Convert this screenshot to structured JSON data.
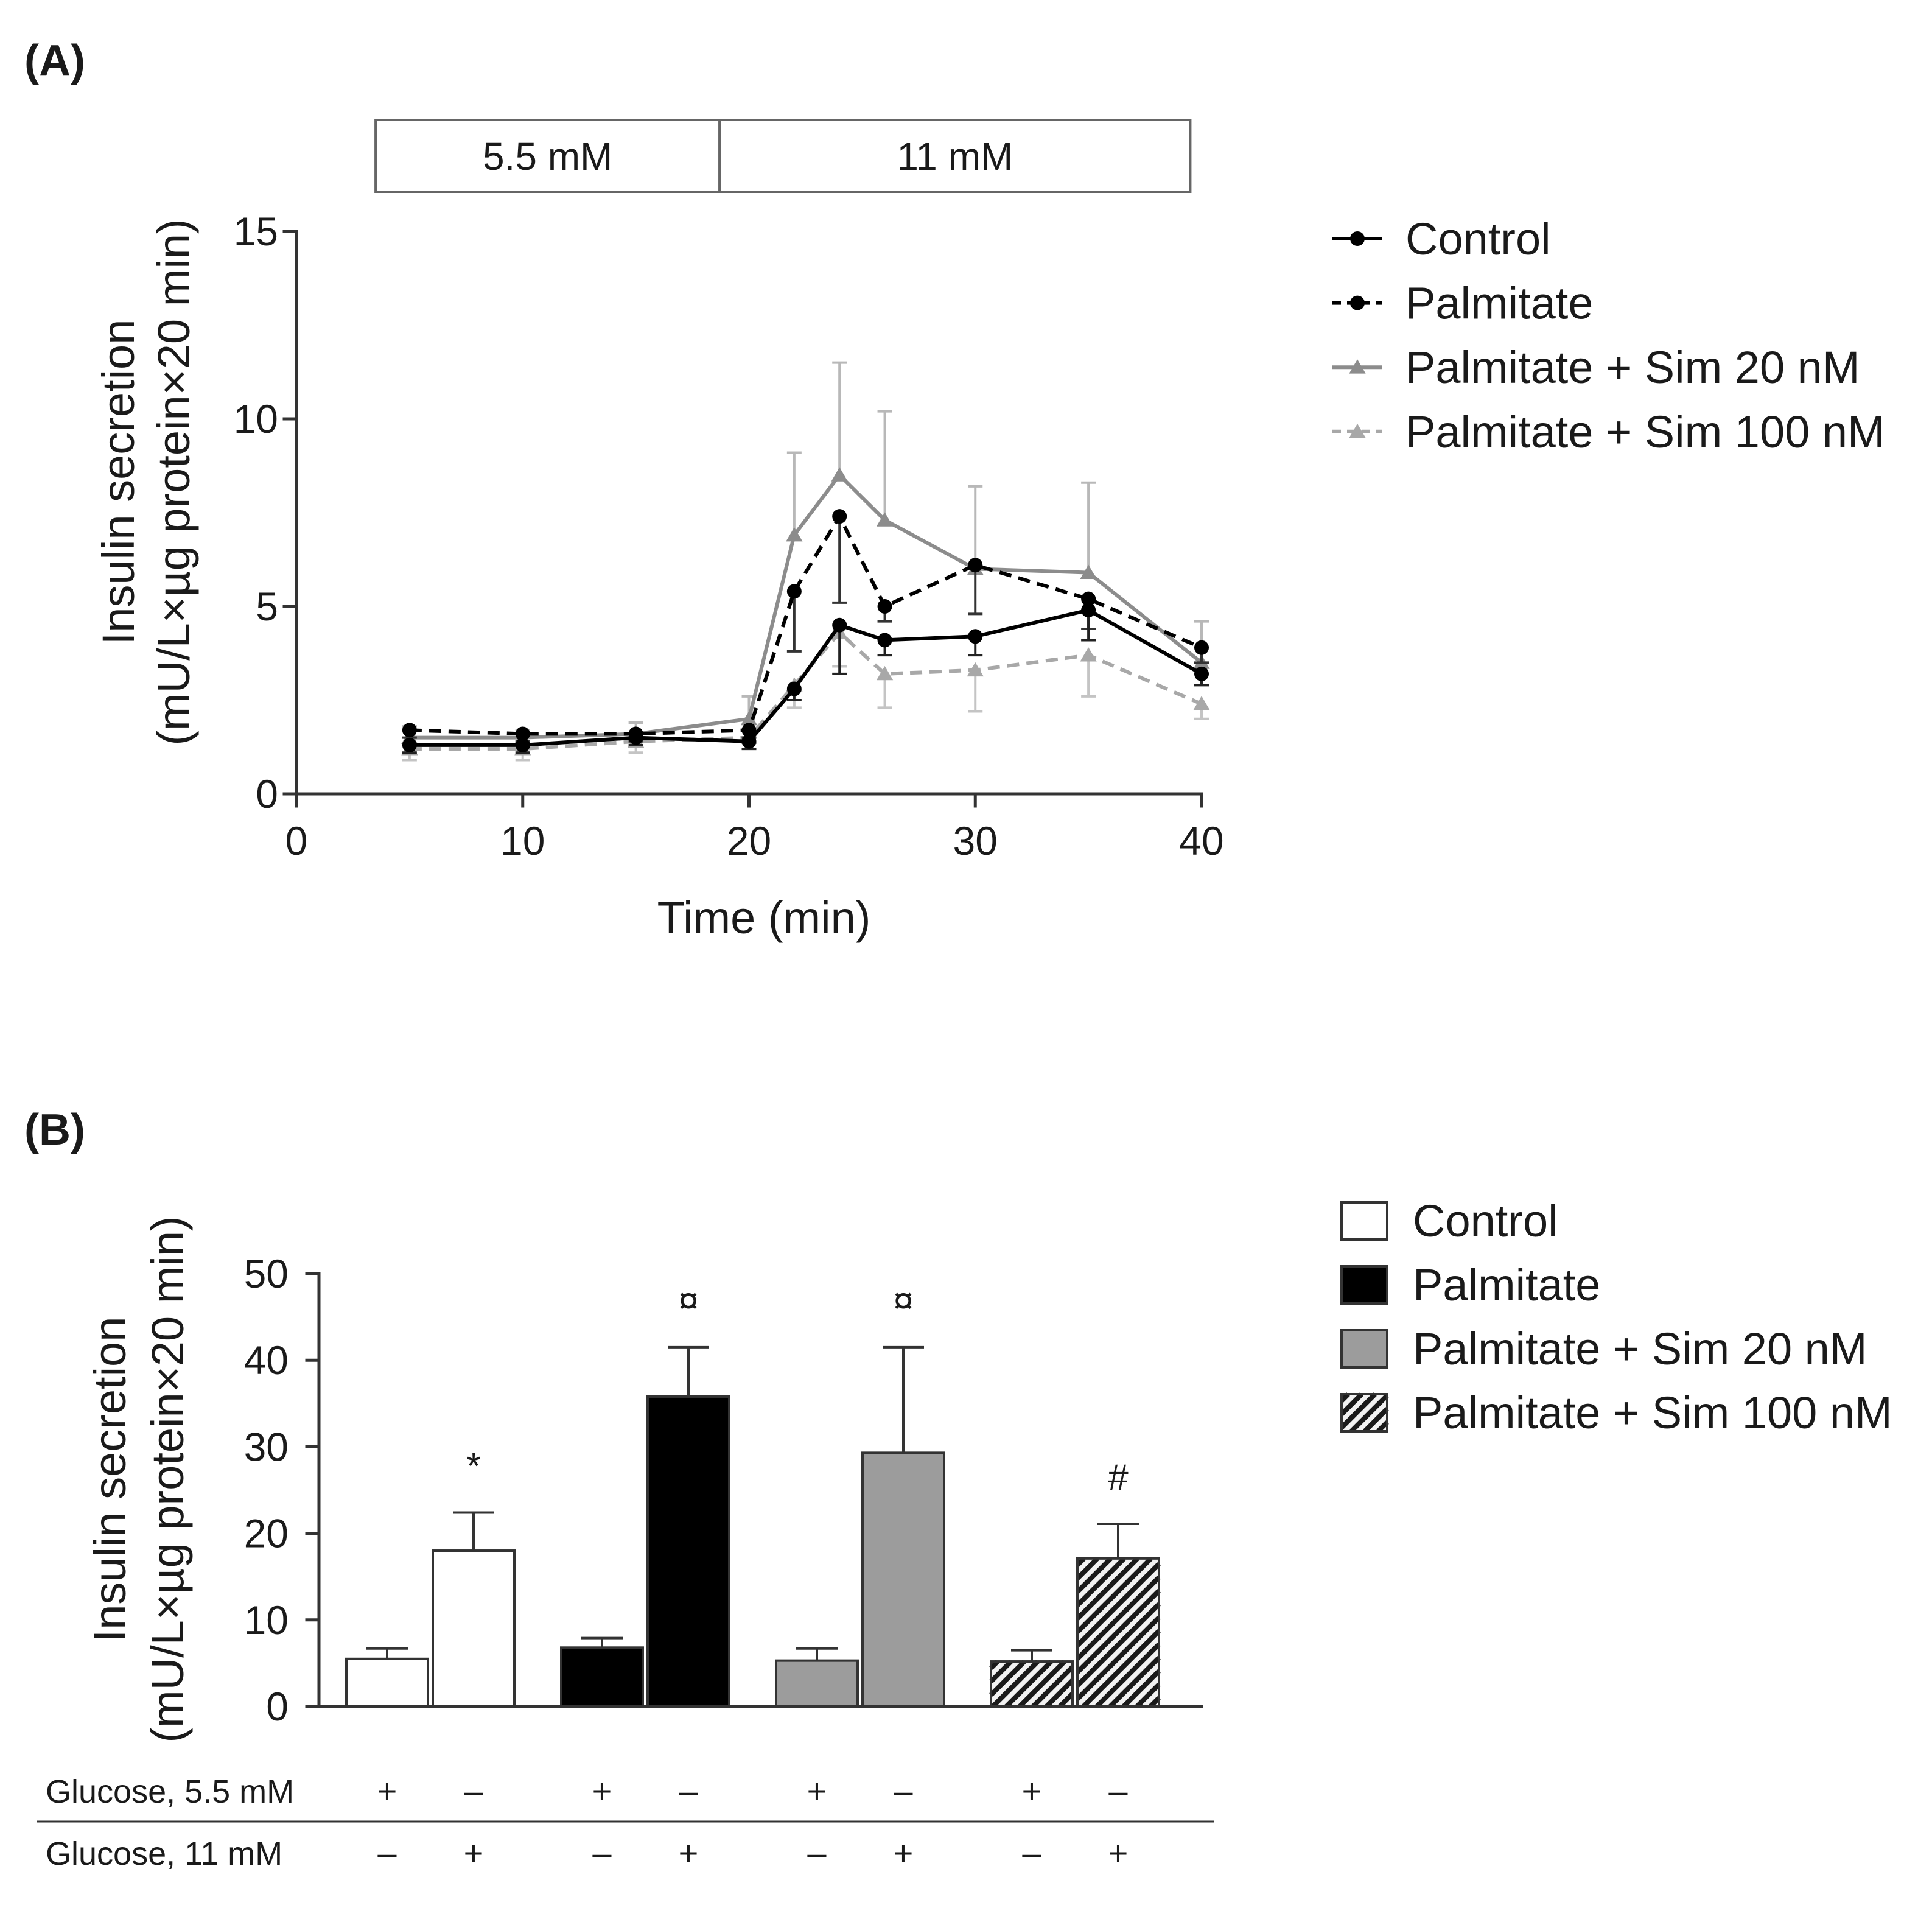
{
  "chart_data": [
    {
      "panel_label": "(A)",
      "type": "line",
      "xlabel": "Time (min)",
      "ylabel": [
        "Insulin secretion",
        "(mU/L×µg protein×20 min)"
      ],
      "xlim": [
        0,
        40
      ],
      "ylim": [
        0,
        15
      ],
      "xticks": [
        0,
        10,
        20,
        30,
        40
      ],
      "yticks": [
        0,
        5,
        10,
        15
      ],
      "glucose_periods": [
        {
          "label": "5.5 mM",
          "time_range_min": [
            3.5,
            18.7
          ]
        },
        {
          "label": "11 mM",
          "time_range_min": [
            18.7,
            39.5
          ]
        }
      ],
      "x": [
        5,
        10,
        15,
        20,
        22,
        24,
        26,
        30,
        35,
        40
      ],
      "series": [
        {
          "name": "Control",
          "values": [
            1.3,
            1.3,
            1.5,
            1.4,
            2.8,
            4.5,
            4.1,
            4.2,
            4.9,
            3.2
          ],
          "err": [
            0.2,
            0.2,
            0.2,
            0.2,
            0.3,
            1.3,
            0.4,
            0.5,
            0.8,
            0.3
          ],
          "error_bars_upward": false,
          "color": "#000000",
          "err_color": "#222222",
          "dashed": false,
          "marker": "circle"
        },
        {
          "name": "Palmitate",
          "values": [
            1.7,
            1.6,
            1.6,
            1.7,
            5.4,
            7.4,
            5.0,
            6.1,
            5.2,
            3.9
          ],
          "err": [
            0.2,
            0.2,
            0.2,
            0.2,
            1.6,
            2.3,
            0.4,
            1.3,
            0.8,
            0.4
          ],
          "error_bars_upward": false,
          "color": "#000000",
          "err_color": "#333333",
          "dashed": true,
          "marker": "circle"
        },
        {
          "name": "Palmitate + Sim 20 nM",
          "values": [
            1.5,
            1.5,
            1.6,
            2.0,
            6.9,
            8.5,
            7.3,
            6.0,
            5.9,
            3.5
          ],
          "err": [
            0.3,
            0.2,
            0.3,
            0.6,
            2.2,
            3.0,
            2.9,
            2.2,
            2.4,
            1.1
          ],
          "error_bars_upward": true,
          "color": "#8c8c8c",
          "err_color": "#b8b8b8",
          "dashed": false,
          "marker": "triangle"
        },
        {
          "name": "Palmitate + Sim 100 nM",
          "values": [
            1.2,
            1.2,
            1.4,
            1.5,
            2.9,
            4.3,
            3.2,
            3.3,
            3.7,
            2.4
          ],
          "err": [
            0.3,
            0.3,
            0.3,
            0.3,
            0.6,
            0.9,
            0.9,
            1.1,
            1.1,
            0.4
          ],
          "error_bars_upward": false,
          "color": "#a8a8a8",
          "err_color": "#c4c4c4",
          "dashed": true,
          "marker": "triangle"
        }
      ]
    },
    {
      "panel_label": "(B)",
      "type": "bar",
      "ylabel": [
        "Insulin secretion",
        "(mU/L×µg protein×20 min)"
      ],
      "ylim": [
        0,
        50
      ],
      "yticks": [
        0,
        10,
        20,
        30,
        40,
        50
      ],
      "series": [
        {
          "name": "Control",
          "values": [
            5.5,
            18.0
          ],
          "err": [
            1.2,
            4.4
          ],
          "fill": "#ffffff",
          "hatched": false,
          "annotation": "*"
        },
        {
          "name": "Palmitate",
          "values": [
            6.8,
            35.8
          ],
          "err": [
            1.1,
            5.7
          ],
          "fill": "#000000",
          "hatched": false,
          "annotation": "¤"
        },
        {
          "name": "Palmitate + Sim 20 nM",
          "values": [
            5.3,
            29.3
          ],
          "err": [
            1.4,
            12.2
          ],
          "fill": "#9c9c9c",
          "hatched": false,
          "annotation": "¤"
        },
        {
          "name": "Palmitate + Sim 100 nM",
          "values": [
            5.2,
            17.1
          ],
          "err": [
            1.3,
            4.0
          ],
          "fill": "#f2f2f2",
          "hatched": true,
          "hatch_color": "#1a1a1a",
          "annotation": "#"
        }
      ],
      "table": [
        {
          "label": "Glucose, 5.5 mM",
          "marks": [
            "+",
            "–",
            "+",
            "–",
            "+",
            "–",
            "+",
            "–"
          ]
        },
        {
          "label": "Glucose, 11 mM",
          "marks": [
            "–",
            "+",
            "–",
            "+",
            "–",
            "+",
            "–",
            "+"
          ]
        }
      ]
    }
  ]
}
